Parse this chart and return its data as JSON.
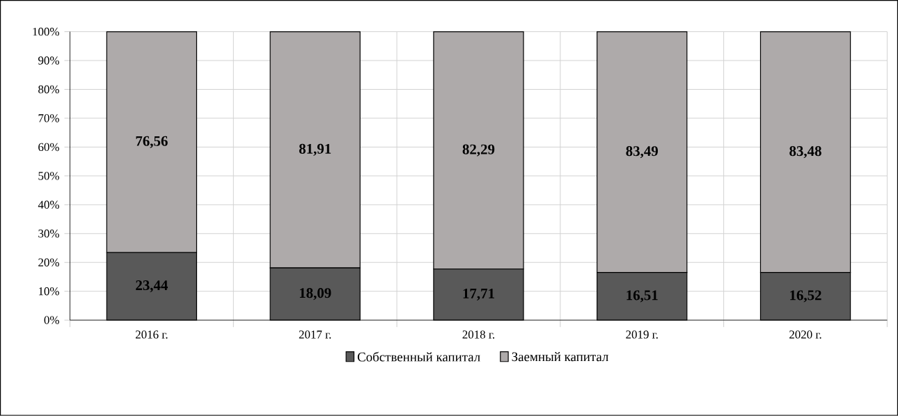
{
  "chart_data": {
    "type": "bar",
    "stacked": true,
    "categories": [
      "2016 г.",
      "2017 г.",
      "2018 г.",
      "2019 г.",
      "2020 г."
    ],
    "series": [
      {
        "name": "Собственный капитал",
        "color": "#595959",
        "values": [
          23.44,
          18.09,
          17.71,
          16.51,
          16.52
        ],
        "value_labels": [
          "23,44",
          "18,09",
          "17,71",
          "16,51",
          "16,52"
        ]
      },
      {
        "name": "Заемный капитал",
        "color": "#aeaaaa",
        "values": [
          76.56,
          81.91,
          82.29,
          83.49,
          83.48
        ],
        "value_labels": [
          "76,56",
          "81,91",
          "82,29",
          "83,49",
          "83,48"
        ]
      }
    ],
    "ylim": [
      0,
      100
    ],
    "yticks": [
      {
        "value": 0,
        "label": "0%"
      },
      {
        "value": 10,
        "label": "10%"
      },
      {
        "value": 20,
        "label": "20%"
      },
      {
        "value": 30,
        "label": "30%"
      },
      {
        "value": 40,
        "label": "40%"
      },
      {
        "value": 50,
        "label": "50%"
      },
      {
        "value": 60,
        "label": "60%"
      },
      {
        "value": 70,
        "label": "70%"
      },
      {
        "value": 80,
        "label": "80%"
      },
      {
        "value": 90,
        "label": "90%"
      },
      {
        "value": 100,
        "label": "100%"
      }
    ],
    "grid": true,
    "legend": "bottom"
  }
}
